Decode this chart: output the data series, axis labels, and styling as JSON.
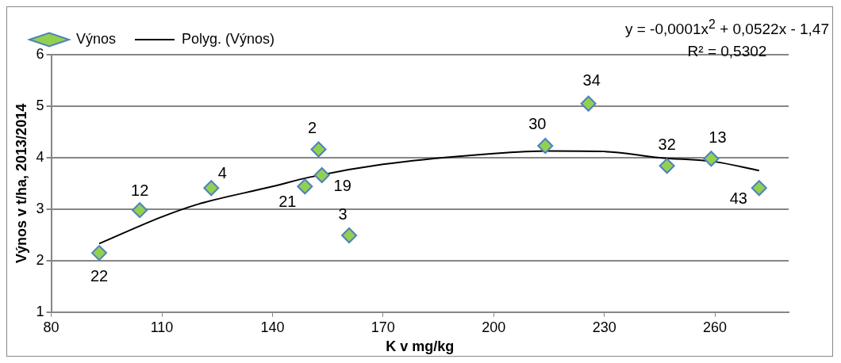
{
  "chart_data": {
    "type": "scatter",
    "xlabel": "K v mg/kg",
    "ylabel": "Výnos v t/ha, 2013/2014",
    "xlim": [
      80,
      280
    ],
    "xticks": [
      80,
      110,
      140,
      170,
      200,
      230,
      260
    ],
    "ylim": [
      1,
      6
    ],
    "yticks": [
      1,
      2,
      3,
      4,
      5,
      6
    ],
    "grid": "y",
    "legend": "top left",
    "annotations": [
      "y = -0,0001x$^{2}$ + 0,0522x - 1,47",
      "R² = 0,5302",
      {
        "text": "22",
        "x": 93,
        "y": 2.15
      },
      {
        "text": "12",
        "x": 104,
        "y": 2.98
      },
      {
        "text": "4",
        "x": 123.4,
        "y": 3.41
      },
      {
        "text": "21",
        "x": 148.8,
        "y": 3.44
      },
      {
        "text": "2",
        "x": 152.5,
        "y": 4.16
      },
      {
        "text": "19",
        "x": 153.4,
        "y": 3.66
      },
      {
        "text": "3",
        "x": 160.8,
        "y": 2.49
      },
      {
        "text": "30",
        "x": 214,
        "y": 4.23
      },
      {
        "text": "34",
        "x": 225.7,
        "y": 5.05
      },
      {
        "text": "32",
        "x": 247,
        "y": 3.84
      },
      {
        "text": "13",
        "x": 259,
        "y": 3.98
      },
      {
        "text": "43",
        "x": 272,
        "y": 3.41
      }
    ],
    "series": [
      {
        "name": "Výnos",
        "type": "scatter",
        "color": "#92d050",
        "marker": "diamond",
        "x": [
          93,
          104,
          123.4,
          148.8,
          152.5,
          153.4,
          160.8,
          214,
          225.7,
          247,
          259,
          272
        ],
        "values": [
          2.15,
          2.98,
          3.41,
          3.44,
          4.16,
          3.66,
          2.49,
          4.23,
          5.05,
          3.84,
          3.98,
          3.41
        ]
      },
      {
        "name": "Polyg. (Výnos)",
        "type": "line",
        "color": "#000000",
        "marker": "none",
        "line_style": "solid",
        "x": [
          93,
          110,
          120,
          140,
          150,
          170,
          200,
          215,
          230,
          245,
          260,
          272
        ],
        "values": [
          2.33,
          2.85,
          3.1,
          3.44,
          3.62,
          3.87,
          4.08,
          4.13,
          4.12,
          4.0,
          3.92,
          3.75
        ]
      }
    ]
  }
}
